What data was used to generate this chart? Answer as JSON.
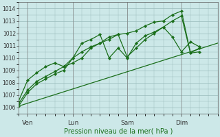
{
  "bg_color": "#cce8e8",
  "grid_color": "#99bbbb",
  "line_color": "#1a6e1a",
  "xlabel": "Pression niveau de la mer( hPa )",
  "ylim": [
    1005.5,
    1014.5
  ],
  "yticks": [
    1006,
    1007,
    1008,
    1009,
    1010,
    1011,
    1012,
    1013,
    1014
  ],
  "xlim": [
    0,
    22
  ],
  "xtick_positions": [
    1,
    6,
    12,
    18
  ],
  "xtick_labels": [
    "Ven",
    "Lun",
    "Sam",
    "Dim"
  ],
  "vlines": [
    1,
    6,
    12,
    18
  ],
  "trend": {
    "x": [
      0,
      22
    ],
    "y": [
      1006.1,
      1011.2
    ]
  },
  "series1": {
    "x": [
      0,
      1,
      2,
      3,
      4,
      5,
      6,
      7,
      8,
      9,
      10,
      11,
      12,
      13,
      14,
      15,
      16,
      17,
      18,
      19,
      20
    ],
    "y": [
      1006.1,
      1007.2,
      1007.9,
      1008.3,
      1008.7,
      1009.0,
      1010.0,
      1010.5,
      1010.9,
      1011.2,
      1011.5,
      1011.9,
      1012.0,
      1012.2,
      1012.6,
      1012.9,
      1013.0,
      1013.5,
      1013.8,
      1010.4,
      1010.5
    ]
  },
  "series2": {
    "x": [
      0,
      1,
      2,
      3,
      4,
      5,
      6,
      7,
      8,
      9,
      10,
      11,
      12,
      13,
      14,
      15,
      16,
      17,
      18,
      19,
      20
    ],
    "y": [
      1006.3,
      1007.4,
      1008.1,
      1008.5,
      1008.9,
      1009.3,
      1009.6,
      1010.0,
      1010.8,
      1011.2,
      1011.7,
      1011.9,
      1010.1,
      1010.8,
      1011.5,
      1012.0,
      1012.5,
      1013.0,
      1013.4,
      1010.4,
      1010.8
    ]
  },
  "series3": {
    "x": [
      0,
      1,
      2,
      3,
      4,
      5,
      6,
      7,
      8,
      9,
      10,
      11,
      12,
      13,
      14,
      15,
      16,
      17,
      18,
      19,
      20
    ],
    "y": [
      1006.5,
      1008.2,
      1008.8,
      1009.3,
      1009.6,
      1009.3,
      1010.0,
      1011.2,
      1011.5,
      1011.9,
      1010.0,
      1010.8,
      1010.0,
      1011.2,
      1011.8,
      1012.1,
      1012.5,
      1011.7,
      1010.5,
      1011.3,
      1010.9
    ]
  }
}
